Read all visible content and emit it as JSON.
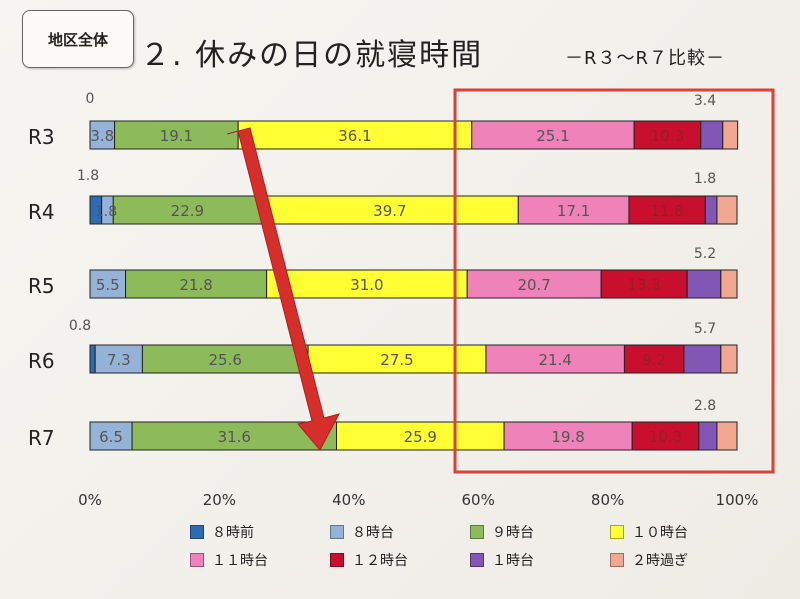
{
  "badge": "地区全体",
  "title": "２. 休みの日の就寝時間",
  "subtitle": "－R３～R７比較－",
  "colors": {
    "8時前": "#2f6bb3",
    "8時台": "#95b3d7",
    "9時台": "#8dbb5a",
    "10時台": "#ffff33",
    "11時台": "#ee82b9",
    "12時台": "#c8102e",
    "1時台": "#8256b4",
    "2時過ぎ": "#f2a890",
    "highlight_box": "#d9413a",
    "arrow": "#d62e2a"
  },
  "legend": [
    "８時前",
    "８時台",
    "９時台",
    "１０時台",
    "１１時台",
    "１２時台",
    "１時台",
    "２時過ぎ"
  ],
  "annotations": {
    "highlight_box": "red rectangle around the 60%–100% region",
    "arrow": "red arrow from R3 9時台 segment down to R7 9時台 segment"
  },
  "chart_data": {
    "type": "bar",
    "orientation": "horizontal",
    "stacked": true,
    "percent": true,
    "categories": [
      "R3",
      "R4",
      "R5",
      "R6",
      "R7"
    ],
    "series": [
      {
        "name": "８時前",
        "key": "8時前",
        "values": [
          0,
          1.8,
          0,
          0.8,
          0
        ]
      },
      {
        "name": "８時台",
        "key": "8時台",
        "values": [
          3.8,
          1.8,
          5.5,
          7.3,
          6.5
        ]
      },
      {
        "name": "９時台",
        "key": "9時台",
        "values": [
          19.1,
          22.9,
          21.8,
          25.6,
          31.6
        ]
      },
      {
        "name": "１０時台",
        "key": "10時台",
        "values": [
          36.1,
          39.7,
          31.0,
          27.5,
          25.9
        ]
      },
      {
        "name": "１１時台",
        "key": "11時台",
        "values": [
          25.1,
          17.1,
          20.7,
          21.4,
          19.8
        ]
      },
      {
        "name": "１２時台",
        "key": "12時台",
        "values": [
          10.3,
          11.8,
          13.3,
          9.2,
          10.3
        ]
      },
      {
        "name": "１時台",
        "key": "1時台",
        "values": [
          3.4,
          1.8,
          5.2,
          5.7,
          2.8
        ]
      },
      {
        "name": "２時過ぎ",
        "key": "2時過ぎ",
        "values": [
          2.3,
          3.1,
          2.5,
          2.5,
          3.1
        ]
      }
    ],
    "labels_shown": [
      [
        "0",
        "3.8",
        "19.1",
        "36.1",
        "25.1",
        "10.3",
        "3.4",
        ""
      ],
      [
        "1.8",
        "1.8",
        "22.9",
        "39.7",
        "17.1",
        "11.8",
        "1.8",
        ""
      ],
      [
        "",
        "5.5",
        "21.8",
        "31.0",
        "20.7",
        "13.3",
        "5.2",
        ""
      ],
      [
        "0.8",
        "7.3",
        "25.6",
        "27.5",
        "21.4",
        "9.2",
        "5.7",
        ""
      ],
      [
        "",
        "6.5",
        "31.6",
        "25.9",
        "19.8",
        "10.3",
        "2.8",
        ""
      ]
    ],
    "xlim": [
      0,
      100
    ],
    "xticks": [
      "0%",
      "20%",
      "40%",
      "60%",
      "80%",
      "100%"
    ],
    "legend_position": "bottom",
    "grid": false
  }
}
